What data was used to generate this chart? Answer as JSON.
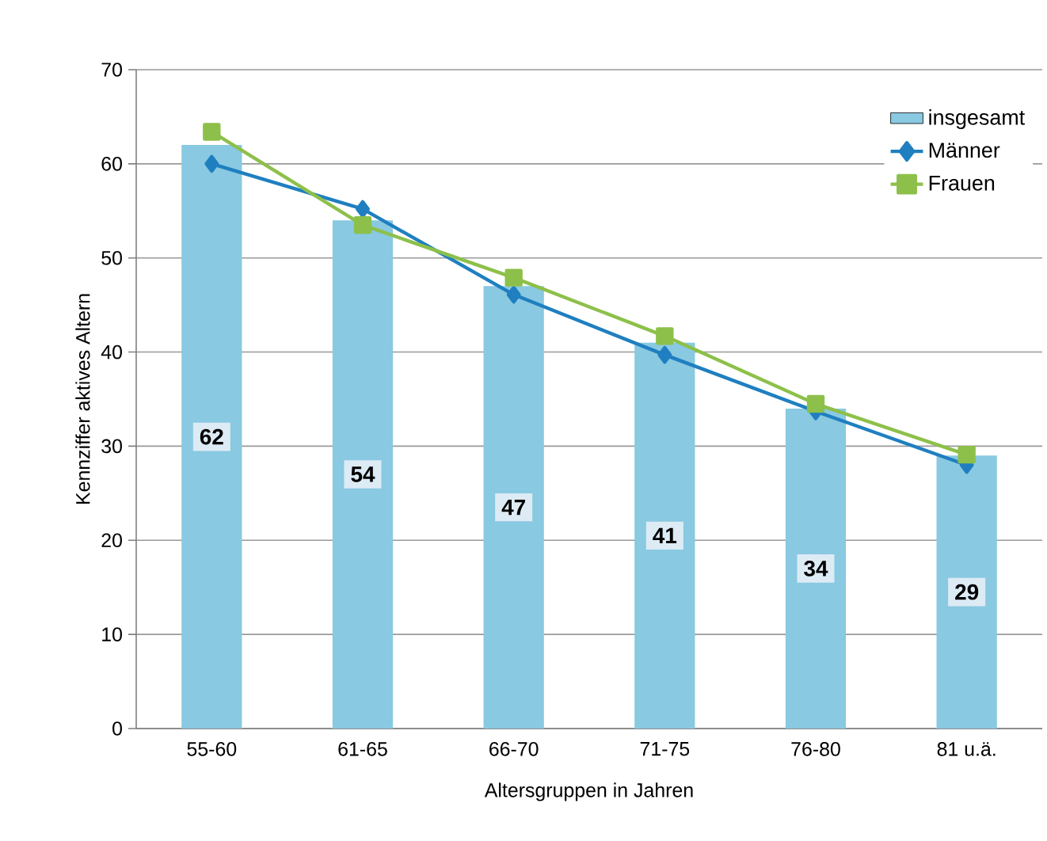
{
  "chart_data": {
    "type": "bar",
    "xlabel": "Altersgruppen in Jahren",
    "ylabel": "Kennziffer aktives Altern",
    "categories": [
      "55-60",
      "61-65",
      "66-70",
      "71-75",
      "76-80",
      "81 u.ä."
    ],
    "series": [
      {
        "name": "insgesamt",
        "color": "#89c9e1",
        "values": [
          62,
          54,
          47,
          41,
          34,
          29
        ],
        "value_labels": [
          "62",
          "54",
          "47",
          "41",
          "34",
          "29"
        ]
      },
      {
        "name": "Männer",
        "type": "line",
        "marker": "diamond",
        "color": "#1f7fc0",
        "values": [
          60,
          55.2,
          46.1,
          39.7,
          33.7,
          28.0
        ]
      },
      {
        "name": "Frauen",
        "type": "line",
        "marker": "square",
        "color": "#8dc04a",
        "values": [
          63.4,
          53.5,
          47.9,
          41.7,
          34.5,
          29.1
        ]
      }
    ],
    "ylim": [
      0,
      70
    ],
    "yticks": [
      0,
      10,
      20,
      30,
      40,
      50,
      60,
      70
    ],
    "grid": "y",
    "legend": "top right"
  }
}
